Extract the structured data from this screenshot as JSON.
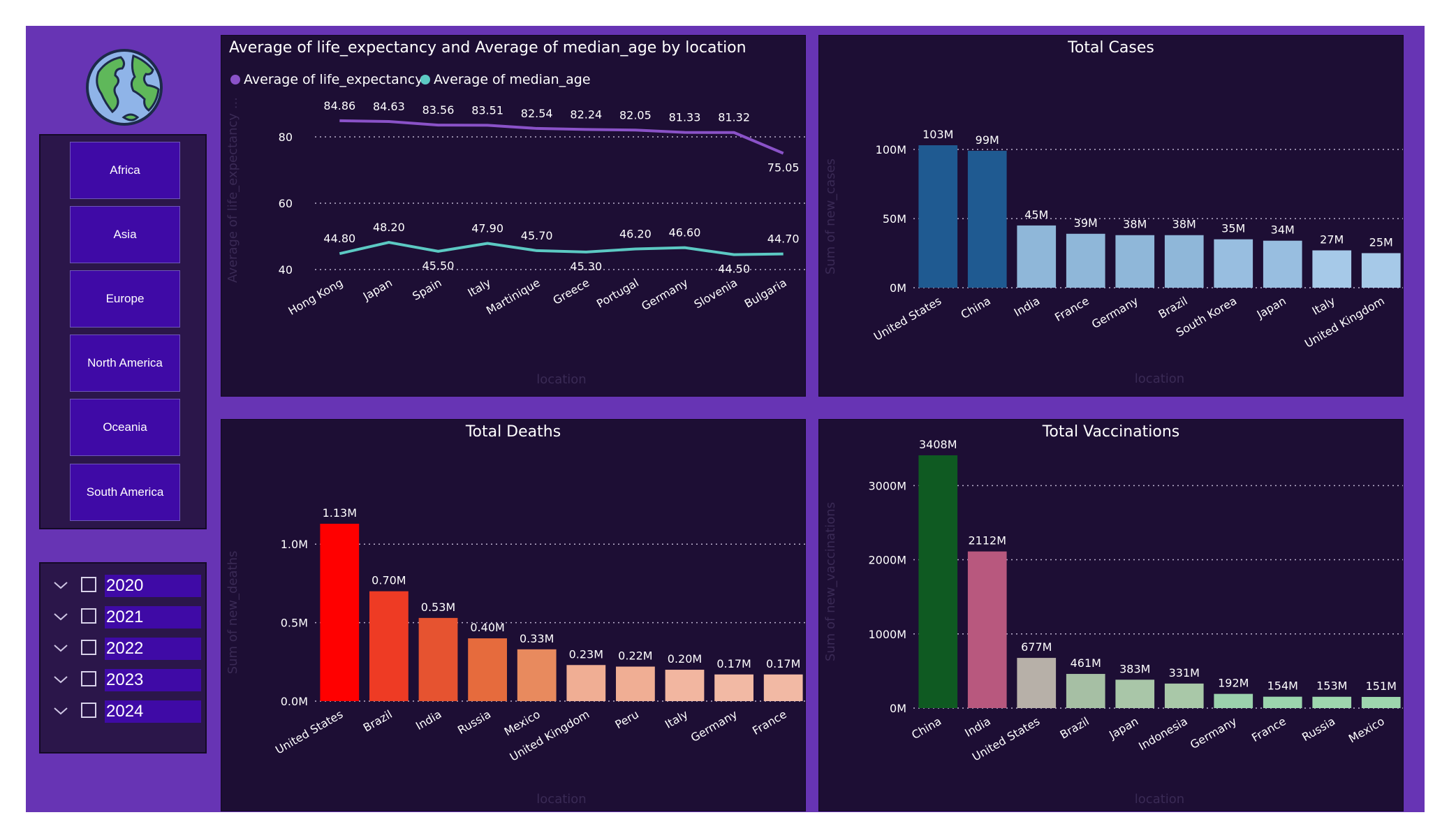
{
  "colors": {
    "background": "#6734b4",
    "panel": "#1d0e34",
    "slicer_button": "#3f0aa6",
    "line_life": "#8a52c8",
    "line_median": "#5cc9c3"
  },
  "sidebar": {
    "logo_icon": "globe-icon",
    "continents": [
      "Africa",
      "Asia",
      "Europe",
      "North America",
      "Oceania",
      "South America"
    ],
    "years": [
      "2020",
      "2021",
      "2022",
      "2023",
      "2024"
    ]
  },
  "chart_data": [
    {
      "type": "line",
      "title": "Average of life_expectancy and Average of median_age by location",
      "xlabel": "location",
      "ylabel": "Average of life_expectancy ...",
      "categories": [
        "Hong Kong",
        "Japan",
        "Spain",
        "Italy",
        "Martinique",
        "Greece",
        "Portugal",
        "Germany",
        "Slovenia",
        "Bulgaria"
      ],
      "series": [
        {
          "name": "Average of life_expectancy",
          "color": "#8a52c8",
          "values": [
            84.86,
            84.63,
            83.56,
            83.51,
            82.54,
            82.24,
            82.05,
            81.33,
            81.32,
            75.05
          ],
          "labels": [
            "84.86",
            "84.63",
            "83.56",
            "83.51",
            "82.54",
            "82.24",
            "82.05",
            "81.33",
            "81.32",
            "75.05"
          ]
        },
        {
          "name": "Average of median_age",
          "color": "#5cc9c3",
          "values": [
            44.8,
            48.2,
            45.5,
            47.9,
            45.7,
            45.3,
            46.2,
            46.6,
            44.5,
            44.7
          ],
          "labels": [
            "44.80",
            "48.20",
            "45.50",
            "47.90",
            "45.70",
            "45.30",
            "46.20",
            "46.60",
            "44.50",
            "44.70"
          ]
        }
      ],
      "yticks": [
        "40",
        "60",
        "80"
      ],
      "ytick_values": [
        40,
        60,
        80
      ],
      "ylim": [
        40,
        88
      ]
    },
    {
      "type": "bar",
      "title": "Total Cases",
      "xlabel": "location",
      "ylabel": "Sum of new_cases",
      "categories": [
        "United States",
        "China",
        "India",
        "France",
        "Germany",
        "Brazil",
        "South Korea",
        "Japan",
        "Italy",
        "United Kingdom"
      ],
      "values": [
        103,
        99,
        45,
        39,
        38,
        38,
        35,
        34,
        27,
        25
      ],
      "labels": [
        "103M",
        "99M",
        "45M",
        "39M",
        "38M",
        "38M",
        "35M",
        "34M",
        "27M",
        "25M"
      ],
      "colors": [
        "#1f5a91",
        "#1f5a91",
        "#8fb7d9",
        "#8fb7d9",
        "#8fb7d9",
        "#8fb7d9",
        "#98bee0",
        "#98bee0",
        "#a6c9e8",
        "#a6c9e8"
      ],
      "yticks": [
        "0M",
        "50M",
        "100M"
      ],
      "ytick_values": [
        0,
        50,
        100
      ],
      "ylim": [
        0,
        103
      ]
    },
    {
      "type": "bar",
      "title": "Total Deaths",
      "xlabel": "location",
      "ylabel": "Sum of new_deaths",
      "categories": [
        "United States",
        "Brazil",
        "India",
        "Russia",
        "Mexico",
        "United Kingdom",
        "Peru",
        "Italy",
        "Germany",
        "France"
      ],
      "values": [
        1.13,
        0.7,
        0.53,
        0.4,
        0.33,
        0.23,
        0.22,
        0.2,
        0.17,
        0.17
      ],
      "labels": [
        "1.13M",
        "0.70M",
        "0.53M",
        "0.40M",
        "0.33M",
        "0.23M",
        "0.22M",
        "0.20M",
        "0.17M",
        "0.17M"
      ],
      "colors": [
        "#ff0000",
        "#ee3b24",
        "#e65330",
        "#e66b3d",
        "#e88a5e",
        "#f0ae94",
        "#f0ae94",
        "#f2b6a0",
        "#f2b9a4",
        "#f2b9a4"
      ],
      "yticks": [
        "0.0M",
        "0.5M",
        "1.0M"
      ],
      "ytick_values": [
        0,
        0.5,
        1.0
      ],
      "ylim": [
        0,
        1.13
      ]
    },
    {
      "type": "bar",
      "title": "Total Vaccinations",
      "xlabel": "location",
      "ylabel": "Sum of new_vaccinations",
      "categories": [
        "China",
        "India",
        "United States",
        "Brazil",
        "Japan",
        "Indonesia",
        "Germany",
        "France",
        "Russia",
        "Mexico"
      ],
      "values": [
        3408,
        2112,
        677,
        461,
        383,
        331,
        192,
        154,
        153,
        151
      ],
      "labels": [
        "3408M",
        "2112M",
        "677M",
        "461M",
        "383M",
        "331M",
        "192M",
        "154M",
        "153M",
        "151M"
      ],
      "colors": [
        "#0f5a22",
        "#b8587e",
        "#b7b0a8",
        "#a6bfa4",
        "#a9c6a8",
        "#a9c8a8",
        "#9bd1ad",
        "#9bd4ad",
        "#9ed6ae",
        "#9ed6ae"
      ],
      "yticks": [
        "0M",
        "1000M",
        "2000M",
        "3000M"
      ],
      "ytick_values": [
        0,
        1000,
        2000,
        3000
      ],
      "ylim": [
        0,
        3408
      ]
    }
  ]
}
